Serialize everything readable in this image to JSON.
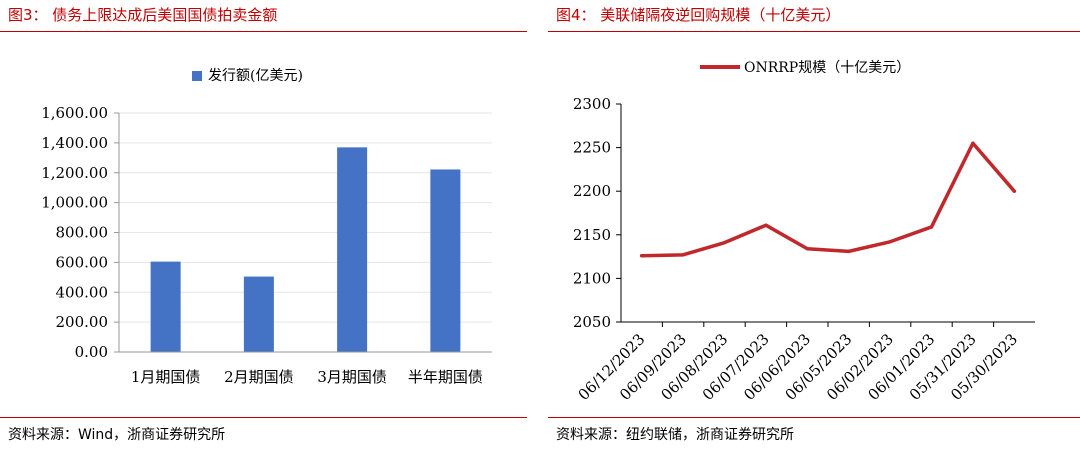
{
  "left": {
    "title": "图3： 债务上限达成后美国国债拍卖金额",
    "source": "资料来源：Wind，浙商证券研究所",
    "chart_data": {
      "type": "bar",
      "categories": [
        "1月期国债",
        "2月期国债",
        "3月期国债",
        "半年期国债"
      ],
      "series": [
        {
          "name": "发行额(亿美元)",
          "values": [
            605,
            505,
            1370,
            1222
          ],
          "color": "#4472c4"
        }
      ],
      "ylim": [
        0,
        1600
      ],
      "yticks": [
        "0.00",
        "200.00",
        "400.00",
        "600.00",
        "800.00",
        "1,000.00",
        "1,200.00",
        "1,400.00",
        "1,600.00"
      ],
      "ytick_values": [
        0,
        200,
        400,
        600,
        800,
        1000,
        1200,
        1400,
        1600
      ],
      "legend": "top"
    }
  },
  "right": {
    "title": "图4： 美联储隔夜逆回购规模（十亿美元）",
    "source": "资料来源：纽约联储，浙商证券研究所",
    "chart_data": {
      "type": "line",
      "x": [
        "06/12/2023",
        "06/09/2023",
        "06/08/2023",
        "06/07/2023",
        "06/06/2023",
        "06/05/2023",
        "06/02/2023",
        "06/01/2023",
        "05/31/2023",
        "05/30/2023"
      ],
      "series": [
        {
          "name": "ONRRP规模（十亿美元）",
          "values": [
            2126,
            2127,
            2141,
            2161,
            2134,
            2131,
            2142,
            2159,
            2255,
            2200
          ],
          "color": "#c0282b"
        }
      ],
      "ylim": [
        2050,
        2300
      ],
      "yticks": [
        "2050",
        "2100",
        "2150",
        "2200",
        "2250",
        "2300"
      ],
      "ytick_values": [
        2050,
        2100,
        2150,
        2200,
        2250,
        2300
      ],
      "legend": "top"
    }
  }
}
